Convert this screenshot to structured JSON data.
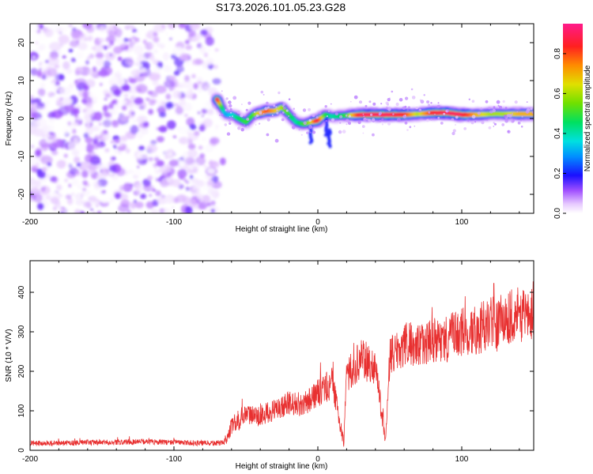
{
  "title": "S173.2026.101.05.23.G28",
  "chart_data": [
    {
      "type": "heatmap",
      "xlabel": "Height of straight line (km)",
      "ylabel": "Frequency (Hz)",
      "xlim": [
        -200,
        150
      ],
      "ylim": [
        -25,
        25
      ],
      "xticks": [
        -200,
        -100,
        0,
        100
      ],
      "xtick_labels": [
        "-200",
        "-100",
        "0",
        "100"
      ],
      "yticks": [
        -20,
        -10,
        0,
        10,
        20
      ],
      "ytick_labels": [
        "-20",
        "-10",
        "0",
        "10",
        "20"
      ],
      "colorbar": {
        "label": "Normalized spectral amplitude",
        "range": [
          0,
          0.95
        ],
        "ticks": [
          0,
          0.2,
          0.4,
          0.6,
          0.8
        ],
        "tick_labels": [
          "0.0",
          "0.2",
          "0.4",
          "0.6",
          "0.8"
        ]
      },
      "noise_region": {
        "x_range": [
          -200,
          -70
        ],
        "y_range": [
          -25,
          25
        ],
        "amplitude_range": [
          0.0,
          0.15
        ]
      },
      "ridge": {
        "x": [
          -70,
          -67,
          -64,
          -60,
          -55,
          -50,
          -45,
          -40,
          -35,
          -30,
          -25,
          -20,
          -15,
          -10,
          -5,
          0,
          5,
          10,
          20,
          30,
          40,
          50,
          60,
          70,
          80,
          90,
          100,
          110,
          120,
          130,
          140,
          150
        ],
        "frequency": [
          5,
          3,
          1,
          1,
          0,
          -1,
          1,
          1.5,
          2,
          2,
          3,
          1,
          -1,
          -1.5,
          -1,
          -0.5,
          1,
          0.5,
          0.8,
          1,
          1,
          1,
          1,
          1.2,
          1.5,
          1.5,
          1,
          1,
          1.2,
          1.2,
          1.2,
          1.2
        ],
        "amplitude": [
          0.9,
          0.5,
          0.3,
          0.35,
          0.45,
          0.5,
          0.5,
          0.7,
          0.8,
          0.7,
          0.6,
          0.5,
          0.4,
          0.5,
          0.6,
          0.9,
          0.5,
          0.4,
          0.5,
          0.9,
          0.9,
          0.9,
          0.85,
          0.6,
          0.85,
          0.9,
          0.9,
          0.7,
          0.6,
          0.6,
          0.7,
          0.7
        ]
      }
    },
    {
      "type": "line",
      "xlabel": "Height of straight line (km)",
      "ylabel": "SNR (10 * V/V)",
      "xlim": [
        -200,
        150
      ],
      "ylim": [
        0,
        480
      ],
      "xticks": [
        -200,
        -100,
        0,
        100
      ],
      "xtick_labels": [
        "-200",
        "-100",
        "0",
        "100"
      ],
      "yticks": [
        0,
        100,
        200,
        300,
        400
      ],
      "ytick_labels": [
        "0",
        "100",
        "200",
        "300",
        "400"
      ],
      "color": "#e83030",
      "series": [
        {
          "name": "SNR",
          "x": [
            -200,
            -180,
            -160,
            -140,
            -120,
            -100,
            -80,
            -70,
            -65,
            -60,
            -55,
            -50,
            -40,
            -30,
            -20,
            -10,
            0,
            10,
            18,
            20,
            30,
            40,
            47,
            50,
            60,
            70,
            80,
            90,
            100,
            110,
            120,
            130,
            140,
            150
          ],
          "y": [
            18,
            18,
            20,
            20,
            22,
            20,
            18,
            18,
            20,
            60,
            70,
            90,
            90,
            100,
            120,
            115,
            145,
            170,
            20,
            190,
            230,
            215,
            25,
            240,
            265,
            270,
            275,
            280,
            300,
            305,
            320,
            335,
            345,
            355
          ]
        }
      ]
    }
  ]
}
